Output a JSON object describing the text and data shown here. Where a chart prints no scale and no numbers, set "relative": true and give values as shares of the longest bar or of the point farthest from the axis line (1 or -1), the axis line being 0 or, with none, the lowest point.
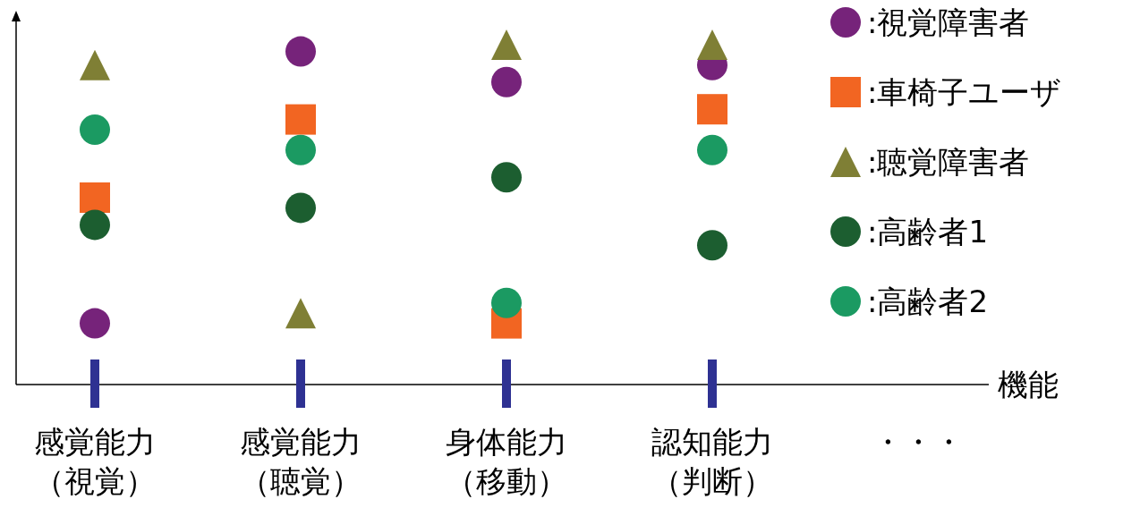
{
  "chart_data": {
    "type": "scatter",
    "relative": true,
    "xlabel": "機能",
    "legend": "top right",
    "categories": [
      "感覚能力（視覚）",
      "感覚能力（聴覚）",
      "身体能力（移動）",
      "認知能力（判断）",
      "・・・"
    ],
    "series": [
      {
        "name": ":視覚障害者",
        "color": "#76237a",
        "marker": "circle",
        "values": [
          0.18,
          0.98,
          0.89,
          0.94,
          null
        ]
      },
      {
        "name": ":車椅子ユーザ",
        "color": "#f26522",
        "marker": "square",
        "values": [
          0.55,
          0.78,
          0.18,
          0.81,
          null
        ]
      },
      {
        "name": ":聴覚障害者",
        "color": "#7f7f35",
        "marker": "triangle",
        "values": [
          0.94,
          0.21,
          1,
          1,
          null
        ]
      },
      {
        "name": ":高齢者1",
        "color": "#1c5e30",
        "marker": "circle",
        "values": [
          0.47,
          0.52,
          0.61,
          0.41,
          null
        ]
      },
      {
        "name": ":高齢者2",
        "color": "#1b9a62",
        "marker": "circle",
        "values": [
          0.75,
          0.69,
          0.24,
          0.69,
          null
        ]
      }
    ]
  }
}
